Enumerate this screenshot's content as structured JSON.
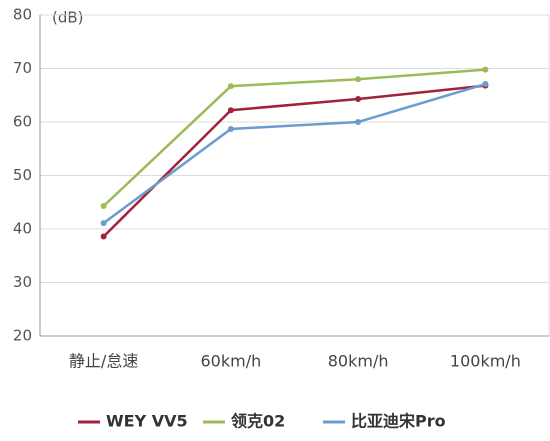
{
  "chart_data": {
    "type": "line",
    "y_label": "(dB)",
    "categories": [
      "静止/怠速",
      "60km/h",
      "80km/h",
      "100km/h"
    ],
    "series": [
      {
        "name": "WEY VV5",
        "color": "#a3213d",
        "values": [
          38.6,
          62.2,
          64.3,
          66.8
        ]
      },
      {
        "name": "领克02",
        "color": "#9bbb59",
        "values": [
          44.3,
          66.7,
          68.0,
          69.8
        ]
      },
      {
        "name": "比亚迪宋Pro",
        "color": "#6a9ccf",
        "values": [
          41.1,
          58.7,
          60.0,
          67.1
        ]
      }
    ],
    "ylim": [
      20,
      80
    ],
    "yticks": [
      20,
      30,
      40,
      50,
      60,
      70,
      80
    ],
    "grid": true,
    "legend": "bottom"
  }
}
